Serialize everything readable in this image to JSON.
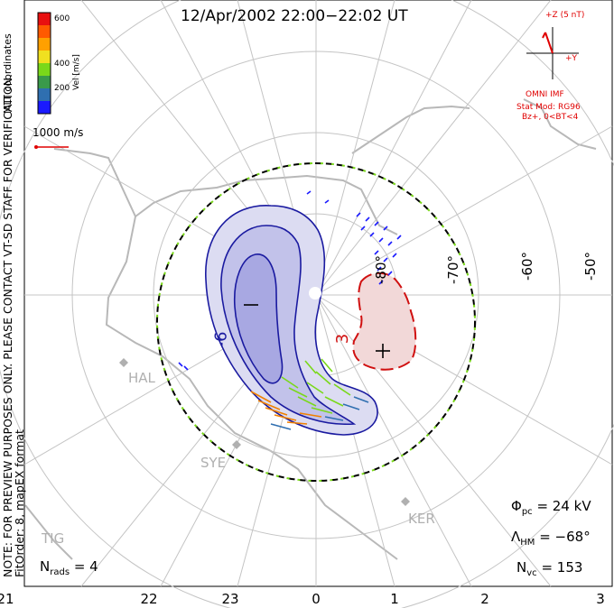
{
  "title": "12/Apr/2002 22:00−22:02 UT",
  "coordinates_label": "MLT coordinates",
  "side_note_line1": "NOTE: FOR PREVIEW PURPOSES ONLY. PLEASE CONTACT VT-SD STAFF FOR VERIFICATION.",
  "side_note_line2": "FitOrder: 8, mapEX format",
  "colorbar": {
    "label": "Vel [m/s]",
    "ticks": [
      "600",
      "400",
      "200"
    ],
    "colors": [
      "#1a1aff",
      "#2f6fb0",
      "#3a9a4a",
      "#7ad81a",
      "#f0e020",
      "#ffa000",
      "#ff5a00",
      "#e81010"
    ]
  },
  "reference_vector": "1000 m/s",
  "imf": {
    "z_label": "+Z (5 nT)",
    "y_label": "+Y",
    "model_label": "OMNI IMF",
    "stat_mod": "Stat Mod: RG96",
    "stat_cond": "Bz+, 0<BT<4"
  },
  "stats": {
    "phi_symbol": "Φ",
    "phi_sub": "pc",
    "phi_value": "= 24 kV",
    "lambda_symbol": "Λ",
    "lambda_sub": "HM",
    "lambda_value": "= −68°",
    "nvc_symbol": "N",
    "nvc_sub": "vc",
    "nvc_value": "= 153",
    "nrads_symbol": "N",
    "nrads_sub": "rads",
    "nrads_value": "= 4"
  },
  "mlt_ticks": [
    "21",
    "22",
    "23",
    "0",
    "1",
    "2",
    "3"
  ],
  "lat_labels": [
    "-50°",
    "-60°",
    "-70°",
    "-80°"
  ],
  "contours": {
    "negative_label": "−",
    "positive_label": "+",
    "neg_value": "-6",
    "pos_value": "3"
  },
  "stations": [
    "HAL",
    "SYE",
    "KER",
    "TIG"
  ]
}
